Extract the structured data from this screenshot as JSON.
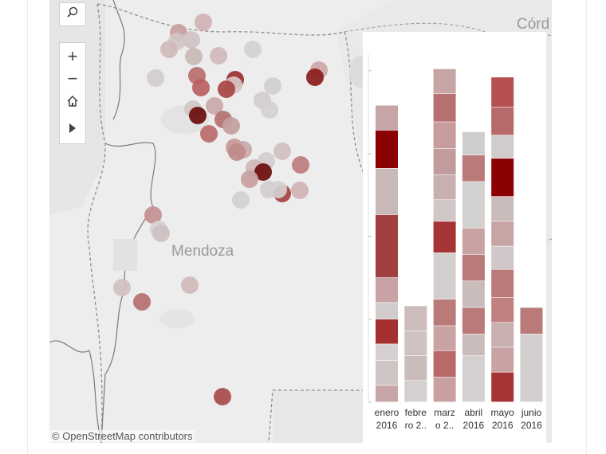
{
  "map": {
    "label_city": "Córd",
    "label_region": "Mendoza",
    "attribution": "© OpenStreetMap contributors",
    "toolbar": {
      "search_icon": "search-icon",
      "zoom_in_symbol": "+",
      "zoom_out_symbol": "−",
      "home_icon": "home-icon",
      "expand_icon": "play-triangle-icon"
    },
    "points": [
      {
        "lon": 193,
        "lat": 28,
        "c": "#cfb3b3"
      },
      {
        "lon": 162,
        "lat": 41,
        "c": "#c9a0a0"
      },
      {
        "lon": 178,
        "lat": 50,
        "c": "#d0c2c2"
      },
      {
        "lon": 160,
        "lat": 52,
        "c": "#d3c6c6"
      },
      {
        "lon": 150,
        "lat": 62,
        "c": "#d0baba"
      },
      {
        "lon": 181,
        "lat": 71,
        "c": "#cbb8b8"
      },
      {
        "lon": 212,
        "lat": 70,
        "c": "#cfbaba"
      },
      {
        "lon": 255,
        "lat": 62,
        "c": "#d4d0d0"
      },
      {
        "lon": 338,
        "lat": 88,
        "c": "#cfa5a5"
      },
      {
        "lon": 333,
        "lat": 97,
        "c": "#8b1c1c"
      },
      {
        "lon": 133,
        "lat": 98,
        "c": "#d2cccc"
      },
      {
        "lon": 185,
        "lat": 95,
        "c": "#b86e6e"
      },
      {
        "lon": 233,
        "lat": 100,
        "c": "#9a3030"
      },
      {
        "lon": 231,
        "lat": 107,
        "c": "#d8c8c8"
      },
      {
        "lon": 190,
        "lat": 110,
        "c": "#b86060"
      },
      {
        "lon": 222,
        "lat": 112,
        "c": "#a84444"
      },
      {
        "lon": 280,
        "lat": 108,
        "c": "#d3cece"
      },
      {
        "lon": 267,
        "lat": 126,
        "c": "#d3cccc"
      },
      {
        "lon": 276,
        "lat": 138,
        "c": "#d4d0d0"
      },
      {
        "lon": 207,
        "lat": 133,
        "c": "#c9a8a8"
      },
      {
        "lon": 180,
        "lat": 137,
        "c": "#d2c6c6"
      },
      {
        "lon": 186,
        "lat": 145,
        "c": "#6a0d0d"
      },
      {
        "lon": 218,
        "lat": 150,
        "c": "#b37070"
      },
      {
        "lon": 228,
        "lat": 158,
        "c": "#c49e9e"
      },
      {
        "lon": 200,
        "lat": 168,
        "c": "#b86a6a"
      },
      {
        "lon": 232,
        "lat": 185,
        "c": "#c89898"
      },
      {
        "lon": 243,
        "lat": 188,
        "c": "#c9a8a8"
      },
      {
        "lon": 235,
        "lat": 191,
        "c": "#c08a8a"
      },
      {
        "lon": 292,
        "lat": 190,
        "c": "#d0c0c0"
      },
      {
        "lon": 272,
        "lat": 202,
        "c": "#d4cccc"
      },
      {
        "lon": 315,
        "lat": 207,
        "c": "#bd7c7c"
      },
      {
        "lon": 257,
        "lat": 211,
        "c": "#d0b6b6"
      },
      {
        "lon": 268,
        "lat": 216,
        "c": "#6a0d0d"
      },
      {
        "lon": 251,
        "lat": 225,
        "c": "#c7a0a0"
      },
      {
        "lon": 275,
        "lat": 238,
        "c": "#d4cccc"
      },
      {
        "lon": 292,
        "lat": 243,
        "c": "#a84040"
      },
      {
        "lon": 287,
        "lat": 238,
        "c": "#d6d0d0"
      },
      {
        "lon": 314,
        "lat": 239,
        "c": "#cfb3b3"
      },
      {
        "lon": 240,
        "lat": 251,
        "c": "#d4d0d0"
      },
      {
        "lon": 130,
        "lat": 270,
        "c": "#c49090"
      },
      {
        "lon": 137,
        "lat": 288,
        "c": "#d3d0d0"
      },
      {
        "lon": 140,
        "lat": 293,
        "c": "#cfc0c0"
      },
      {
        "lon": 91,
        "lat": 361,
        "c": "#d0c0c0"
      },
      {
        "lon": 176,
        "lat": 358,
        "c": "#cfbaba"
      },
      {
        "lon": 116,
        "lat": 379,
        "c": "#b67070"
      },
      {
        "lon": 217,
        "lat": 498,
        "c": "#a84a4a"
      }
    ]
  },
  "chart_data": {
    "type": "bar",
    "stacked": true,
    "categories": [
      "enero 2016",
      "febre ro 2..",
      "marz o 2..",
      "abril 2016",
      "mayo 2016",
      "junio 2016"
    ],
    "category_labels": [
      [
        "enero",
        "2016"
      ],
      [
        "febre",
        "ro 2.."
      ],
      [
        "marz",
        "o 2.."
      ],
      [
        "abril",
        "2016"
      ],
      [
        "mayo",
        "2016"
      ],
      [
        "junio",
        "2016"
      ]
    ],
    "ylim": [
      0,
      21
    ],
    "columns": [
      {
        "segments": [
          {
            "v": 1,
            "c": "#c8a5a5"
          },
          {
            "v": 1.5,
            "c": "#d0c5c5"
          },
          {
            "v": 1,
            "c": "#d6d0d0"
          },
          {
            "v": 1.5,
            "c": "#a53030"
          },
          {
            "v": 1,
            "c": "#d0cccc"
          },
          {
            "v": 1.5,
            "c": "#c9a3a3"
          },
          {
            "v": 3.8,
            "c": "#a04040"
          },
          {
            "v": 2.8,
            "c": "#c8b8b8"
          },
          {
            "v": 2.3,
            "c": "#8b0000"
          },
          {
            "v": 1.5,
            "c": "#c8a5a5"
          }
        ]
      },
      {
        "segments": [
          {
            "v": 1.3,
            "c": "#d4d0d0"
          },
          {
            "v": 1.5,
            "c": "#cbbcbc"
          },
          {
            "v": 1.5,
            "c": "#cfc2c2"
          },
          {
            "v": 1.5,
            "c": "#cdbcbc"
          }
        ]
      },
      {
        "segments": [
          {
            "v": 1.5,
            "c": "#c8a0a0"
          },
          {
            "v": 1.6,
            "c": "#b86a6a"
          },
          {
            "v": 1.5,
            "c": "#c9a3a3"
          },
          {
            "v": 1.6,
            "c": "#bb7a7a"
          },
          {
            "v": 2.8,
            "c": "#d3cfcf"
          },
          {
            "v": 1.9,
            "c": "#a63434"
          },
          {
            "v": 1.3,
            "c": "#cfc6c6"
          },
          {
            "v": 1.5,
            "c": "#c9b0b0"
          },
          {
            "v": 1.6,
            "c": "#c29c9c"
          },
          {
            "v": 1.6,
            "c": "#c79c9c"
          },
          {
            "v": 1.7,
            "c": "#b87070"
          },
          {
            "v": 1.5,
            "c": "#c8a5a5"
          }
        ]
      },
      {
        "segments": [
          {
            "v": 2.8,
            "c": "#d4d0d0"
          },
          {
            "v": 1.3,
            "c": "#cbbcbc"
          },
          {
            "v": 1.6,
            "c": "#bb7a7a"
          },
          {
            "v": 1.6,
            "c": "#cbbcbc"
          },
          {
            "v": 1.6,
            "c": "#bb7a7a"
          },
          {
            "v": 1.6,
            "c": "#c9a3a3"
          },
          {
            "v": 2.8,
            "c": "#d3d0d0"
          },
          {
            "v": 1.6,
            "c": "#bb7a7a"
          },
          {
            "v": 1.4,
            "c": "#cfcccc"
          }
        ]
      },
      {
        "segments": [
          {
            "v": 1.8,
            "c": "#a63434"
          },
          {
            "v": 1.5,
            "c": "#c9a3a3"
          },
          {
            "v": 1.5,
            "c": "#c8b0b0"
          },
          {
            "v": 1.5,
            "c": "#c08080"
          },
          {
            "v": 1.7,
            "c": "#bb7a7a"
          },
          {
            "v": 1.4,
            "c": "#d0c8c8"
          },
          {
            "v": 1.5,
            "c": "#c8a5a5"
          },
          {
            "v": 1.5,
            "c": "#cbbcbc"
          },
          {
            "v": 2.3,
            "c": "#8b0000"
          },
          {
            "v": 1.4,
            "c": "#d0cccc"
          },
          {
            "v": 1.7,
            "c": "#b86a6a"
          },
          {
            "v": 1.8,
            "c": "#b55050"
          }
        ]
      },
      {
        "segments": [
          {
            "v": 4.1,
            "c": "#d3cfcf"
          },
          {
            "v": 1.6,
            "c": "#bb7a7a"
          }
        ]
      }
    ]
  }
}
